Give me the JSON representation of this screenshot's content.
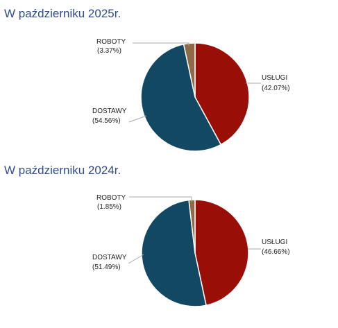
{
  "sections": [
    {
      "title": "W październiku 2025r."
    },
    {
      "title": "W październiku 2024r."
    }
  ],
  "colors": {
    "title": "#2f4b8c",
    "uslugi": "#9a0e08",
    "dostawy": "#134863",
    "roboty": "#8f6a48",
    "leader": "#aaaaaa"
  },
  "chart_data": [
    {
      "type": "pie",
      "title": "W październiku 2025r.",
      "slices": [
        {
          "label": "USŁUGI",
          "percent_text": "(42.07%)",
          "value": 42.07,
          "color": "#9a0e08"
        },
        {
          "label": "DOSTAWY",
          "percent_text": "(54.56%)",
          "value": 54.56,
          "color": "#134863"
        },
        {
          "label": "ROBOTY",
          "percent_text": "(3.37%)",
          "value": 3.37,
          "color": "#8f6a48"
        }
      ]
    },
    {
      "type": "pie",
      "title": "W październiku 2024r.",
      "slices": [
        {
          "label": "USŁUGI",
          "percent_text": "(46.66%)",
          "value": 46.66,
          "color": "#9a0e08"
        },
        {
          "label": "DOSTAWY",
          "percent_text": "(51.49%)",
          "value": 51.49,
          "color": "#134863"
        },
        {
          "label": "ROBOTY",
          "percent_text": "(1.85%)",
          "value": 1.85,
          "color": "#8f6a48"
        }
      ]
    }
  ]
}
